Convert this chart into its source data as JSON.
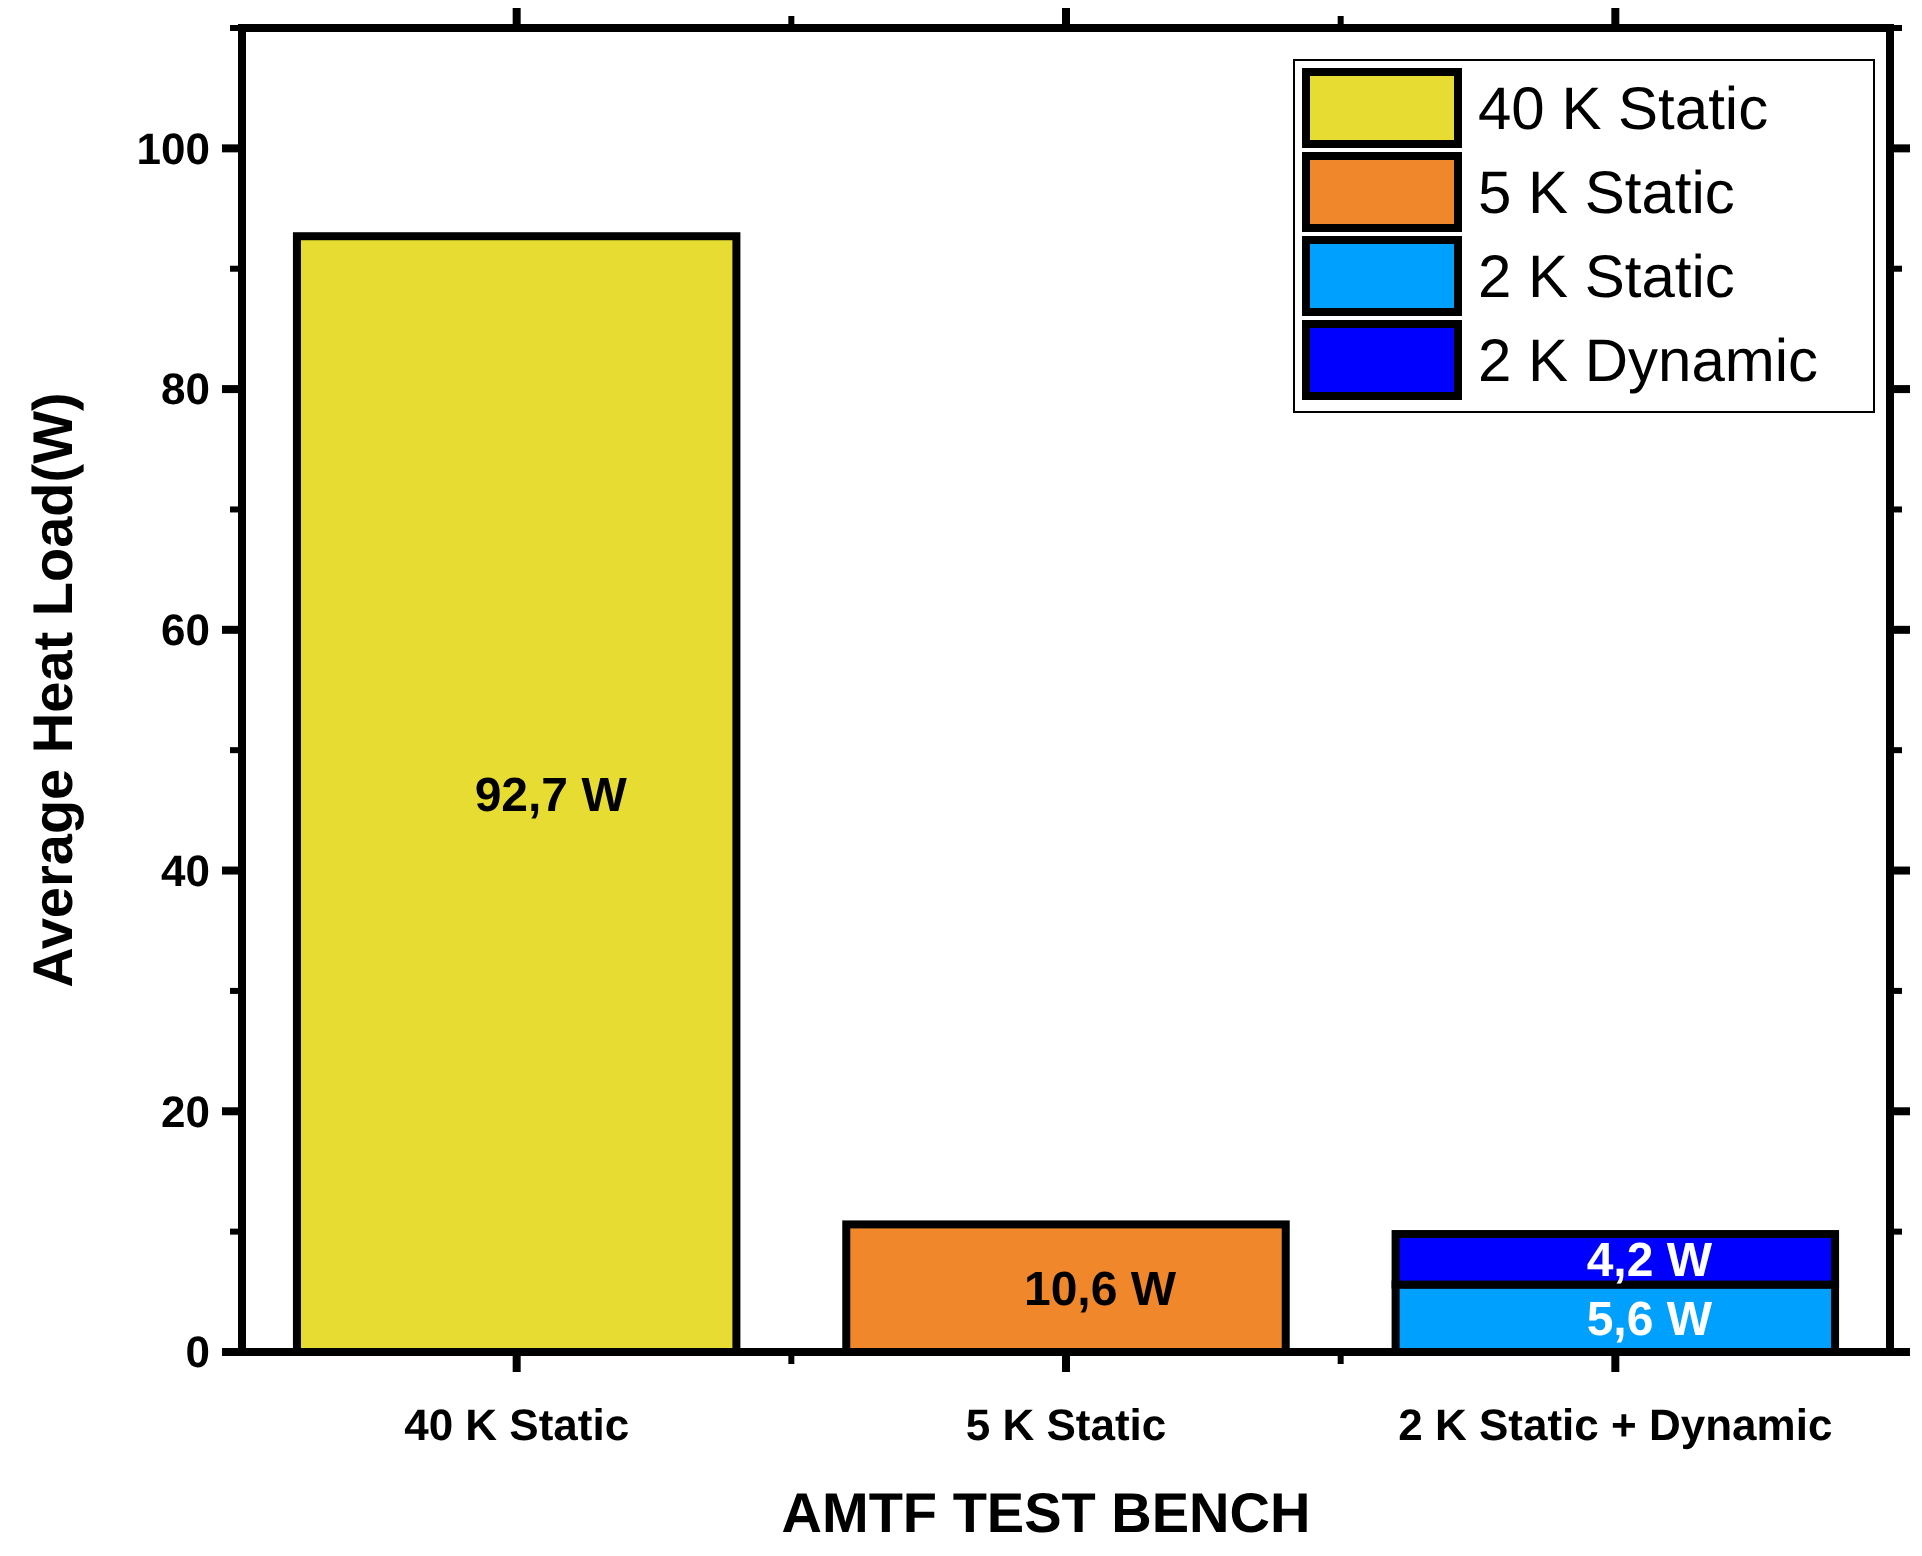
{
  "chart_data": {
    "type": "bar",
    "stacked": true,
    "xlabel": "AMTF TEST BENCH",
    "ylabel": "Average Heat Load(W)",
    "categories": [
      "40 K Static",
      "5 K Static",
      "2 K Static + Dynamic"
    ],
    "series": [
      {
        "name": "40 K Static",
        "color": "#e6dc32",
        "values": [
          92.7,
          null,
          null
        ],
        "value_labels": [
          "92,7 W",
          null,
          null
        ]
      },
      {
        "name": "5 K Static",
        "color": "#f0872a",
        "values": [
          null,
          10.6,
          null
        ],
        "value_labels": [
          null,
          "10,6 W",
          null
        ]
      },
      {
        "name": "2 K Static",
        "color": "#00a0ff",
        "values": [
          null,
          null,
          5.6
        ],
        "value_labels": [
          null,
          null,
          "5,6 W"
        ]
      },
      {
        "name": "2 K Dynamic",
        "color": "#0000ff",
        "values": [
          null,
          null,
          4.2
        ],
        "value_labels": [
          null,
          null,
          "4,2 W"
        ]
      }
    ],
    "ylim": [
      0,
      110
    ],
    "yticks": [
      0,
      20,
      40,
      60,
      80,
      100
    ],
    "grid": false,
    "legend": "top right"
  }
}
